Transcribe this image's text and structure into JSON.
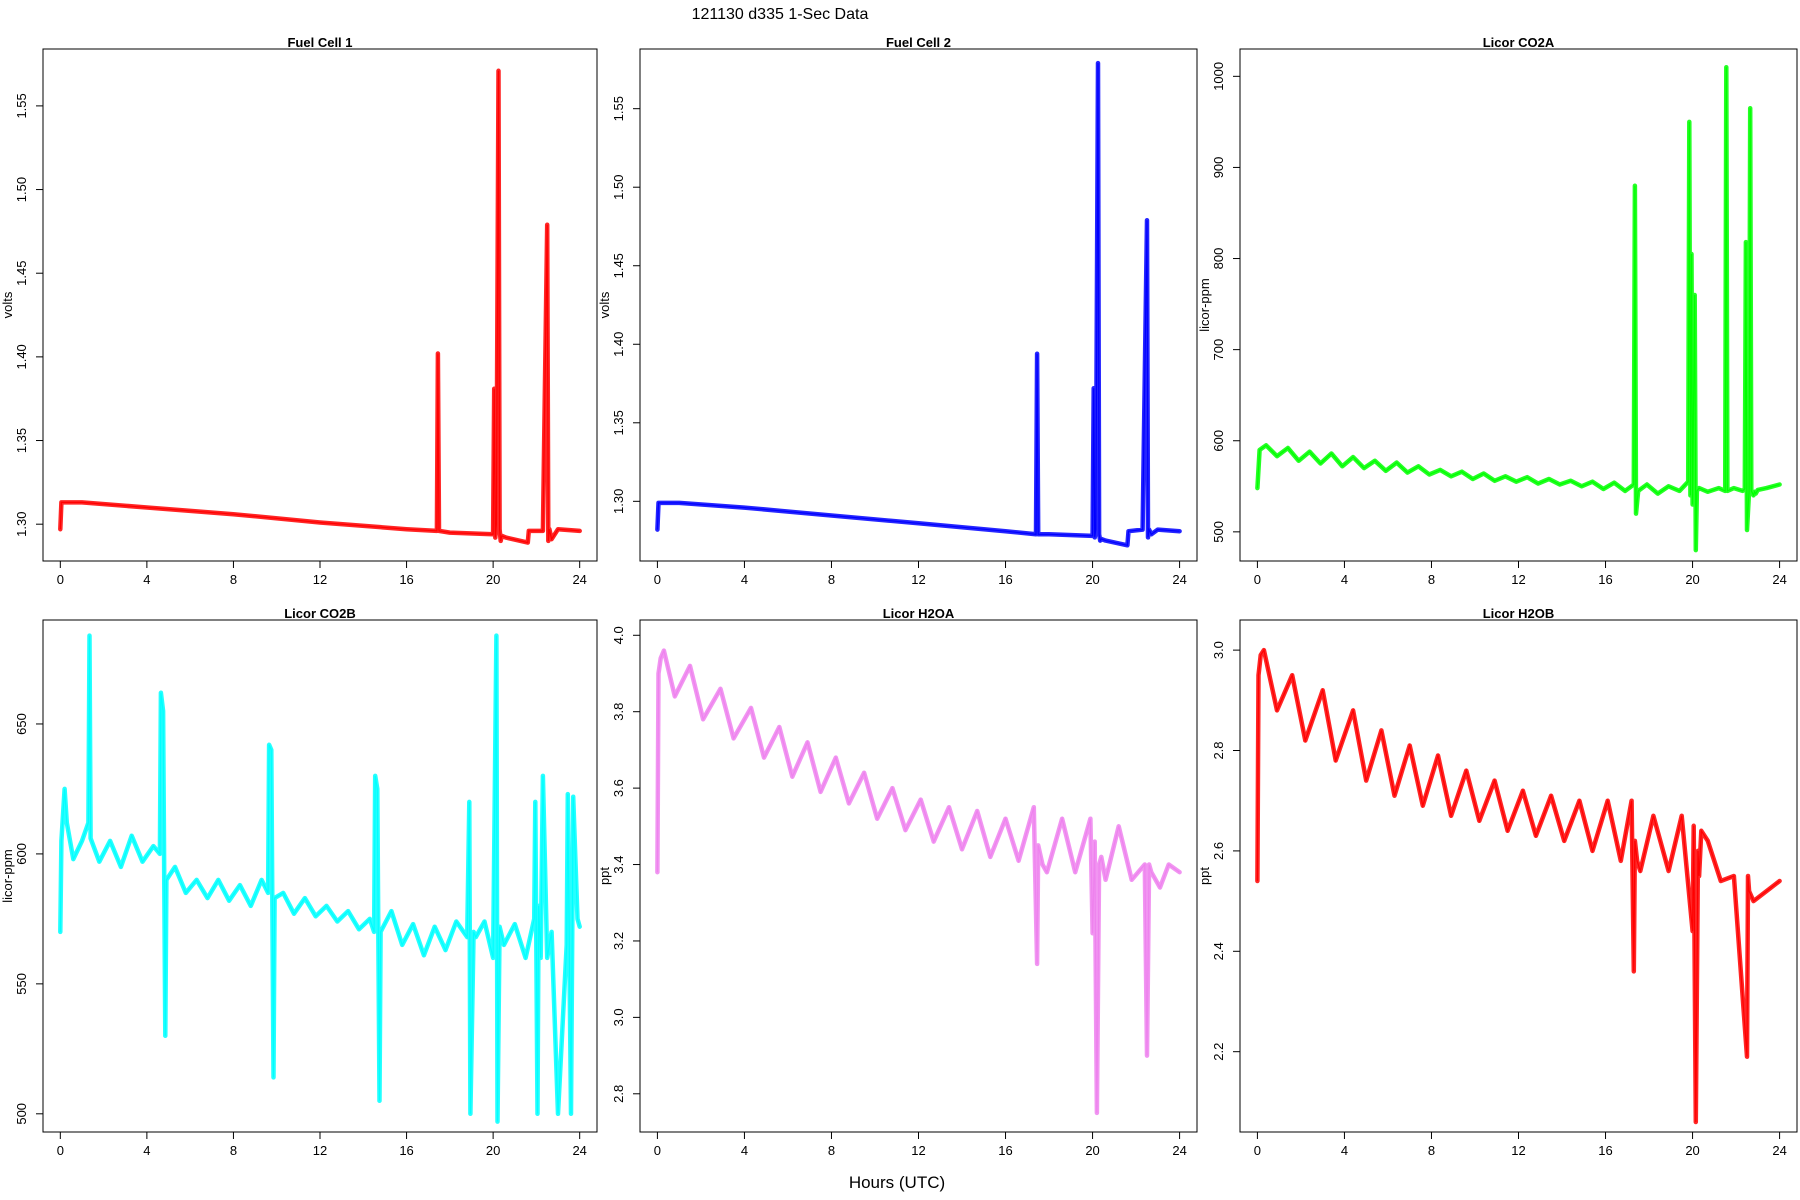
{
  "title": "121130   d335   1-Sec Data",
  "xlabel": "Hours (UTC)",
  "chart_data": [
    {
      "type": "line",
      "title": "Fuel Cell 1",
      "ylabel": "volts",
      "color": "#ff0000",
      "xlim": [
        -0.8,
        24.8
      ],
      "ylim": [
        1.278,
        1.584
      ],
      "xticks": [
        0,
        4,
        8,
        12,
        16,
        20,
        24
      ],
      "yticks": [
        1.3,
        1.35,
        1.4,
        1.45,
        1.5,
        1.55
      ],
      "ytick_labels": [
        "1.30",
        "1.35",
        "1.40",
        "1.45",
        "1.50",
        "1.55"
      ],
      "series": [
        {
          "x": [
            0,
            0.05,
            1,
            4,
            8,
            12,
            16,
            17.4,
            17.45,
            17.5,
            18,
            20,
            20.05,
            20.1,
            20.15,
            20.25,
            20.3,
            20.35,
            20.4,
            20.6,
            21.6,
            21.65,
            22.3,
            22.5,
            22.55,
            22.6,
            22.7,
            23,
            24
          ],
          "y": [
            1.297,
            1.313,
            1.313,
            1.31,
            1.306,
            1.301,
            1.297,
            1.296,
            1.402,
            1.296,
            1.295,
            1.294,
            1.381,
            1.292,
            1.3,
            1.571,
            1.297,
            1.29,
            1.293,
            1.292,
            1.289,
            1.296,
            1.296,
            1.479,
            1.29,
            1.297,
            1.291,
            1.297,
            1.296
          ]
        }
      ]
    },
    {
      "type": "line",
      "title": "Fuel Cell 2",
      "ylabel": "volts",
      "color": "#0000ff",
      "xlim": [
        -0.8,
        24.8
      ],
      "ylim": [
        1.262,
        1.588
      ],
      "xticks": [
        0,
        4,
        8,
        12,
        16,
        20,
        24
      ],
      "yticks": [
        1.3,
        1.35,
        1.4,
        1.45,
        1.5,
        1.55
      ],
      "ytick_labels": [
        "1.30",
        "1.35",
        "1.40",
        "1.45",
        "1.50",
        "1.55"
      ],
      "series": [
        {
          "x": [
            0,
            0.05,
            1,
            4,
            8,
            12,
            16,
            17.4,
            17.45,
            17.5,
            18,
            20,
            20.05,
            20.1,
            20.15,
            20.25,
            20.3,
            20.35,
            20.4,
            20.6,
            21.6,
            21.65,
            22.3,
            22.5,
            22.55,
            22.6,
            22.7,
            23,
            24
          ],
          "y": [
            1.282,
            1.299,
            1.299,
            1.296,
            1.291,
            1.286,
            1.281,
            1.279,
            1.394,
            1.279,
            1.279,
            1.278,
            1.372,
            1.277,
            1.282,
            1.579,
            1.279,
            1.275,
            1.276,
            1.275,
            1.272,
            1.281,
            1.282,
            1.479,
            1.277,
            1.282,
            1.279,
            1.282,
            1.281
          ]
        }
      ]
    },
    {
      "type": "line",
      "title": "Licor CO2A",
      "ylabel": "licor-ppm",
      "color": "#00ff00",
      "xlim": [
        -0.8,
        24.8
      ],
      "ylim": [
        468,
        1030
      ],
      "xticks": [
        0,
        4,
        8,
        12,
        16,
        20,
        24
      ],
      "yticks": [
        500,
        600,
        700,
        800,
        900,
        1000
      ],
      "ytick_labels": [
        "500",
        "600",
        "700",
        "800",
        "900",
        "1000"
      ],
      "series": [
        {
          "x": [
            0,
            0.1,
            0.4,
            0.9,
            1.4,
            1.9,
            2.4,
            2.9,
            3.4,
            3.9,
            4.4,
            4.9,
            5.4,
            5.9,
            6.4,
            6.9,
            7.4,
            7.9,
            8.4,
            8.9,
            9.4,
            9.9,
            10.4,
            10.9,
            11.4,
            11.9,
            12.4,
            12.9,
            13.4,
            13.9,
            14.4,
            14.9,
            15.4,
            15.9,
            16.4,
            16.9,
            17.3,
            17.35,
            17.4,
            17.5,
            17.9,
            18.4,
            18.9,
            19.4,
            19.8,
            19.85,
            19.9,
            19.95,
            20.0,
            20.1,
            20.15,
            20.2,
            20.3,
            20.7,
            21.2,
            21.5,
            21.55,
            21.6,
            21.9,
            22.3,
            22.4,
            22.45,
            22.5,
            22.6,
            22.65,
            22.7,
            22.8,
            22.85,
            22.9,
            23.0,
            23.4,
            24.0
          ],
          "y": [
            548,
            590,
            595,
            583,
            592,
            578,
            588,
            575,
            586,
            572,
            582,
            570,
            578,
            567,
            576,
            565,
            572,
            563,
            568,
            561,
            566,
            558,
            564,
            556,
            561,
            555,
            560,
            553,
            558,
            552,
            556,
            550,
            555,
            547,
            554,
            545,
            552,
            880,
            520,
            545,
            552,
            542,
            550,
            545,
            555,
            950,
            540,
            805,
            530,
            760,
            480,
            545,
            548,
            544,
            548,
            545,
            1010,
            545,
            548,
            545,
            547,
            818,
            502,
            545,
            965,
            545,
            540,
            544,
            542,
            546,
            548,
            552
          ]
        }
      ]
    },
    {
      "type": "line",
      "title": "Licor CO2B",
      "ylabel": "licor-ppm",
      "color": "#00ffff",
      "xlim": [
        -0.8,
        24.8
      ],
      "ylim": [
        493,
        690
      ],
      "xticks": [
        0,
        4,
        8,
        12,
        16,
        20,
        24
      ],
      "yticks": [
        500,
        550,
        600,
        650
      ],
      "ytick_labels": [
        "500",
        "550",
        "600",
        "650"
      ],
      "series": [
        {
          "x": [
            0,
            0.05,
            0.2,
            0.3,
            0.6,
            1.0,
            1.3,
            1.35,
            1.4,
            1.8,
            2.3,
            2.8,
            3.3,
            3.8,
            4.3,
            4.6,
            4.65,
            4.75,
            4.85,
            4.9,
            5.3,
            5.8,
            6.3,
            6.8,
            7.3,
            7.8,
            8.3,
            8.8,
            9.3,
            9.6,
            9.65,
            9.75,
            9.85,
            9.9,
            10.3,
            10.8,
            11.3,
            11.8,
            12.3,
            12.8,
            13.3,
            13.8,
            14.3,
            14.5,
            14.55,
            14.65,
            14.75,
            14.8,
            15.3,
            15.8,
            16.3,
            16.8,
            17.3,
            17.8,
            18.3,
            18.8,
            18.9,
            18.95,
            19.1,
            19.2,
            19.6,
            20.0,
            20.15,
            20.2,
            20.3,
            20.5,
            21.0,
            21.5,
            21.9,
            21.95,
            22.05,
            22.1,
            22.2,
            22.3,
            22.5,
            22.7,
            23.0,
            23.4,
            23.45,
            23.6,
            23.7,
            23.9,
            24.0
          ],
          "y": [
            570,
            605,
            625,
            612,
            598,
            605,
            612,
            684,
            606,
            597,
            605,
            595,
            607,
            597,
            603,
            600,
            662,
            655,
            530,
            590,
            595,
            585,
            590,
            583,
            590,
            582,
            588,
            580,
            590,
            585,
            642,
            640,
            514,
            583,
            585,
            577,
            583,
            576,
            580,
            574,
            578,
            571,
            575,
            570,
            630,
            625,
            505,
            570,
            578,
            565,
            573,
            561,
            572,
            563,
            574,
            568,
            620,
            500,
            570,
            568,
            574,
            560,
            684,
            497,
            572,
            565,
            573,
            560,
            575,
            620,
            500,
            580,
            560,
            630,
            560,
            570,
            500,
            565,
            623,
            500,
            622,
            575,
            572
          ]
        }
      ]
    },
    {
      "type": "line",
      "title": "Licor H2OA",
      "ylabel": "ppt",
      "color": "#ee82ee",
      "xlim": [
        -0.8,
        24.8
      ],
      "ylim": [
        2.7,
        4.04
      ],
      "xticks": [
        0,
        4,
        8,
        12,
        16,
        20,
        24
      ],
      "yticks": [
        2.8,
        3.0,
        3.2,
        3.4,
        3.6,
        3.8,
        4.0
      ],
      "ytick_labels": [
        "2.8",
        "3.0",
        "3.2",
        "3.4",
        "3.6",
        "3.8",
        "4.0"
      ],
      "series": [
        {
          "x": [
            0,
            0.05,
            0.15,
            0.3,
            0.8,
            1.5,
            2.1,
            2.9,
            3.5,
            4.3,
            4.9,
            5.6,
            6.2,
            6.9,
            7.5,
            8.2,
            8.8,
            9.5,
            10.1,
            10.8,
            11.4,
            12.1,
            12.7,
            13.4,
            14.0,
            14.7,
            15.3,
            16.0,
            16.6,
            17.3,
            17.45,
            17.5,
            17.7,
            17.9,
            18.6,
            19.2,
            19.9,
            20.0,
            20.1,
            20.2,
            20.3,
            20.4,
            20.6,
            21.2,
            21.8,
            22.4,
            22.5,
            22.6,
            22.7,
            23.1,
            23.5,
            24.0
          ],
          "y": [
            3.38,
            3.9,
            3.94,
            3.96,
            3.84,
            3.92,
            3.78,
            3.86,
            3.73,
            3.81,
            3.68,
            3.76,
            3.63,
            3.72,
            3.59,
            3.68,
            3.56,
            3.64,
            3.52,
            3.6,
            3.49,
            3.57,
            3.46,
            3.55,
            3.44,
            3.54,
            3.42,
            3.52,
            3.41,
            3.55,
            3.14,
            3.45,
            3.4,
            3.38,
            3.52,
            3.38,
            3.52,
            3.22,
            3.46,
            2.75,
            3.4,
            3.42,
            3.36,
            3.5,
            3.36,
            3.4,
            2.9,
            3.4,
            3.38,
            3.34,
            3.4,
            3.38
          ]
        }
      ]
    },
    {
      "type": "line",
      "title": "Licor H2OB",
      "ylabel": "ppt",
      "color": "#ff0000",
      "xlim": [
        -0.8,
        24.8
      ],
      "ylim": [
        2.04,
        3.06
      ],
      "xticks": [
        0,
        4,
        8,
        12,
        16,
        20,
        24
      ],
      "yticks": [
        2.2,
        2.4,
        2.6,
        2.8,
        3.0
      ],
      "ytick_labels": [
        "2.2",
        "2.4",
        "2.6",
        "2.8",
        "3.0"
      ],
      "series": [
        {
          "x": [
            0,
            0.05,
            0.15,
            0.3,
            0.9,
            1.6,
            2.2,
            3.0,
            3.6,
            4.4,
            5.0,
            5.7,
            6.3,
            7.0,
            7.6,
            8.3,
            8.9,
            9.6,
            10.2,
            10.9,
            11.5,
            12.2,
            12.8,
            13.5,
            14.1,
            14.8,
            15.4,
            16.1,
            16.7,
            17.2,
            17.3,
            17.35,
            17.45,
            17.6,
            18.2,
            18.9,
            19.5,
            20.0,
            20.05,
            20.15,
            20.25,
            20.3,
            20.4,
            20.7,
            21.3,
            21.9,
            22.5,
            22.55,
            22.6,
            22.8,
            23.4,
            24.0
          ],
          "y": [
            2.54,
            2.95,
            2.99,
            3.0,
            2.88,
            2.95,
            2.82,
            2.92,
            2.78,
            2.88,
            2.74,
            2.84,
            2.71,
            2.81,
            2.69,
            2.79,
            2.67,
            2.76,
            2.66,
            2.74,
            2.64,
            2.72,
            2.63,
            2.71,
            2.62,
            2.7,
            2.6,
            2.7,
            2.58,
            2.7,
            2.36,
            2.62,
            2.58,
            2.56,
            2.67,
            2.56,
            2.67,
            2.44,
            2.65,
            2.06,
            2.6,
            2.55,
            2.64,
            2.62,
            2.54,
            2.55,
            2.19,
            2.55,
            2.52,
            2.5,
            2.52,
            2.54
          ]
        }
      ]
    }
  ]
}
